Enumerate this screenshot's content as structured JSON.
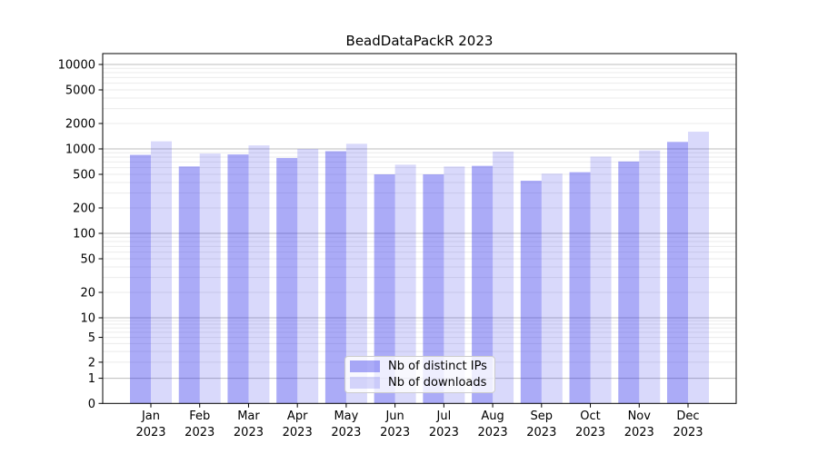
{
  "figure": {
    "title": "BeadDataPackR 2023"
  },
  "chart_data": {
    "type": "bar",
    "title": "BeadDataPackR 2023",
    "y_scale": "symlog",
    "grid_on": true,
    "legend_position": "lower center",
    "categories": [
      "Jan",
      "Feb",
      "Mar",
      "Apr",
      "May",
      "Jun",
      "Jul",
      "Aug",
      "Sep",
      "Oct",
      "Nov",
      "Dec"
    ],
    "x_year": "2023",
    "series": [
      {
        "name": "Nb of distinct IPs",
        "color": "#aaaaf8",
        "fill": "rgba(45,45,235,0.40)",
        "values": [
          850,
          620,
          860,
          780,
          940,
          500,
          500,
          630,
          420,
          530,
          710,
          1210
        ]
      },
      {
        "name": "Nb of downloads",
        "color": "#d9d9fa",
        "fill": "rgba(45,45,235,0.18)",
        "values": [
          1230,
          880,
          1100,
          1000,
          1150,
          650,
          620,
          930,
          510,
          810,
          960,
          1600
        ]
      }
    ],
    "y_ticks": [
      0,
      1,
      2,
      5,
      10,
      20,
      50,
      100,
      200,
      500,
      1000,
      2000,
      5000,
      10000
    ],
    "ylim": [
      0,
      13500
    ],
    "grid": {
      "major_values": [
        1,
        10,
        100,
        1000,
        10000
      ],
      "major_color": "#bdbdbd",
      "minor_color": "#ebebeb"
    },
    "axis_color": "#000000"
  }
}
